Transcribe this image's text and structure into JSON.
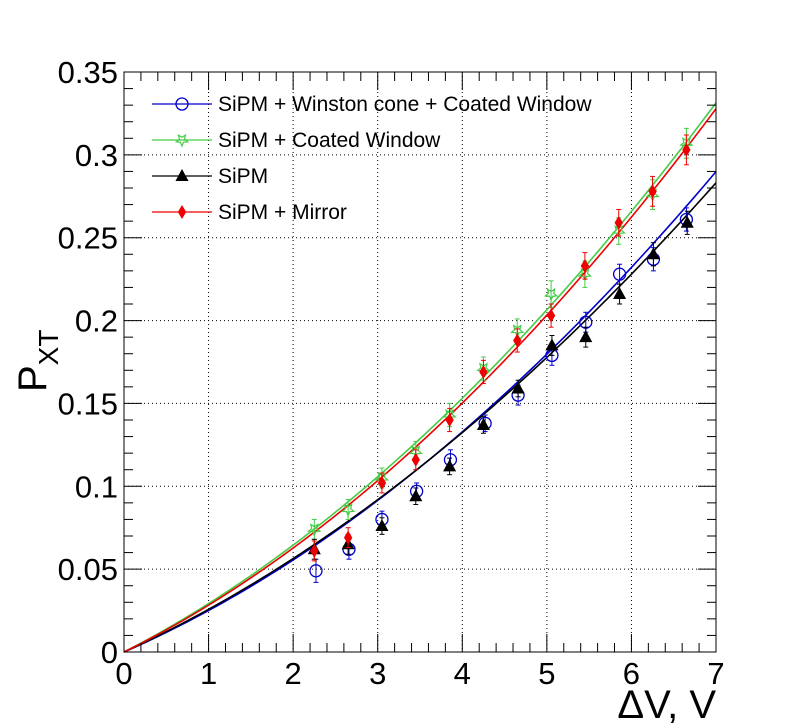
{
  "chart_data": {
    "type": "scatter",
    "title": "",
    "xlabel": "ΔV, V",
    "ylabel": "P",
    "ylabel_subscript": "XT",
    "xlim": [
      0,
      7
    ],
    "ylim": [
      0,
      0.35
    ],
    "x_ticks": [
      0,
      1,
      2,
      3,
      4,
      5,
      6,
      7
    ],
    "x_tick_labels": [
      "0",
      "1",
      "2",
      "3",
      "4",
      "5",
      "6",
      "7"
    ],
    "y_ticks": [
      0,
      0.05,
      0.1,
      0.15,
      0.2,
      0.25,
      0.3,
      0.35
    ],
    "y_tick_labels": [
      "0",
      "0.05",
      "0.1",
      "0.15",
      "0.2",
      "0.25",
      "0.3",
      "0.35"
    ],
    "grid": true,
    "legend_position": "top-left",
    "series": [
      {
        "name": "SiPM + Winston cone + Coated Window",
        "color": "#0000cc",
        "marker": "open-circle",
        "x": [
          2.27,
          2.66,
          3.05,
          3.46,
          3.86,
          4.27,
          4.66,
          5.06,
          5.46,
          5.86,
          6.26,
          6.65
        ],
        "y": [
          0.049,
          0.062,
          0.08,
          0.097,
          0.116,
          0.138,
          0.155,
          0.179,
          0.199,
          0.228,
          0.237,
          0.261
        ],
        "err": [
          0.007,
          0.006,
          0.005,
          0.005,
          0.006,
          0.005,
          0.006,
          0.006,
          0.006,
          0.006,
          0.007,
          0.007
        ],
        "fit_coeff": [
          0.0223,
          0.00273
        ]
      },
      {
        "name": "SiPM + Coated Window",
        "color": "#44cc44",
        "marker": "open-star",
        "x": [
          2.25,
          2.65,
          3.05,
          3.45,
          3.85,
          4.25,
          4.65,
          5.05,
          5.45,
          5.85,
          6.25,
          6.65
        ],
        "y": [
          0.074,
          0.086,
          0.105,
          0.121,
          0.143,
          0.171,
          0.194,
          0.216,
          0.228,
          0.254,
          0.276,
          0.307
        ],
        "err": [
          0.006,
          0.006,
          0.006,
          0.006,
          0.007,
          0.007,
          0.007,
          0.008,
          0.008,
          0.008,
          0.009,
          0.009
        ],
        "fit_coeff": [
          0.0262,
          0.00302
        ]
      },
      {
        "name": "SiPM",
        "color": "#000000",
        "marker": "filled-triangle",
        "x": [
          2.25,
          2.65,
          3.05,
          3.45,
          3.85,
          4.25,
          4.66,
          5.06,
          5.46,
          5.86,
          6.26,
          6.66
        ],
        "y": [
          0.062,
          0.065,
          0.076,
          0.094,
          0.112,
          0.137,
          0.159,
          0.185,
          0.19,
          0.216,
          0.24,
          0.259
        ],
        "err": [
          0.006,
          0.006,
          0.005,
          0.005,
          0.005,
          0.005,
          0.005,
          0.006,
          0.006,
          0.006,
          0.007,
          0.007
        ],
        "fit_coeff": [
          0.0233,
          0.00245
        ]
      },
      {
        "name": "SiPM + Mirror",
        "color": "#ee0000",
        "marker": "filled-diamond",
        "x": [
          2.25,
          2.65,
          3.05,
          3.45,
          3.85,
          4.25,
          4.65,
          5.05,
          5.45,
          5.85,
          6.25,
          6.65
        ],
        "y": [
          0.061,
          0.069,
          0.102,
          0.116,
          0.14,
          0.169,
          0.188,
          0.203,
          0.233,
          0.259,
          0.278,
          0.303
        ],
        "err": [
          0.006,
          0.006,
          0.006,
          0.006,
          0.007,
          0.007,
          0.007,
          0.007,
          0.008,
          0.008,
          0.009,
          0.009
        ],
        "fit_coeff": [
          0.0252,
          0.00309
        ]
      }
    ]
  }
}
